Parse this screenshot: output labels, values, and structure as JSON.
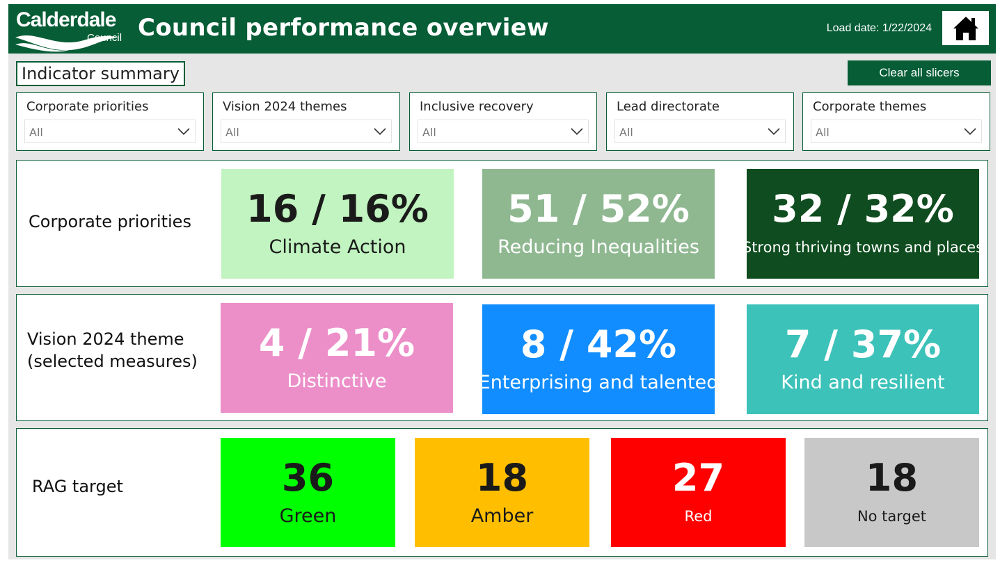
{
  "header": {
    "logo_line1": "Calderdale",
    "logo_line2": "Council",
    "title": "Council performance overview",
    "load_date": "Load date: 1/22/2024",
    "home_icon": "home-icon"
  },
  "summary": {
    "title": "Indicator summary",
    "clear_button": "Clear all slicers"
  },
  "slicers": [
    {
      "label": "Corporate priorities",
      "value": "All"
    },
    {
      "label": "Vision 2024 themes",
      "value": "All"
    },
    {
      "label": "Inclusive recovery",
      "value": "All"
    },
    {
      "label": "Lead directorate",
      "value": "All"
    },
    {
      "label": "Corporate themes",
      "value": "All"
    }
  ],
  "corporate_priorities": {
    "label": "Corporate priorities",
    "cards": [
      {
        "value": "16 / 16%",
        "name": "Climate Action",
        "color": "#c1f4c0",
        "text_color": "#1a1a1a"
      },
      {
        "value": "51 / 52%",
        "name": "Reducing Inequalities",
        "color": "#8fb891",
        "text_color": "#ffffff"
      },
      {
        "value": "32 / 32%",
        "name": "Strong thriving towns and places",
        "color": "#0f4c1f",
        "text_color": "#ffffff"
      }
    ]
  },
  "vision_2024": {
    "label_line1": "Vision 2024 theme",
    "label_line2": "(selected measures)",
    "cards": [
      {
        "value": "4 / 21%",
        "name": "Distinctive",
        "color": "#ec8fc9",
        "text_color": "#ffffff"
      },
      {
        "value": "8 / 42%",
        "name": "Enterprising and talented",
        "color": "#118dff",
        "text_color": "#ffffff"
      },
      {
        "value": "7 / 37%",
        "name": "Kind and resilient",
        "color": "#3cc2b9",
        "text_color": "#ffffff"
      }
    ]
  },
  "rag_target": {
    "label": "RAG target",
    "cards": [
      {
        "value": "36",
        "name": "Green",
        "color": "#00ff00",
        "text_color": "#1a1a1a"
      },
      {
        "value": "18",
        "name": "Amber",
        "color": "#ffbf00",
        "text_color": "#1a1a1a"
      },
      {
        "value": "27",
        "name": "Red",
        "color": "#ff0000",
        "text_color": "#ffffff"
      },
      {
        "value": "18",
        "name": "No target",
        "color": "#c8c8c8",
        "text_color": "#1a1a1a"
      }
    ]
  },
  "colors": {
    "brand_green": "#065d36",
    "background": "#e6e6e6"
  }
}
